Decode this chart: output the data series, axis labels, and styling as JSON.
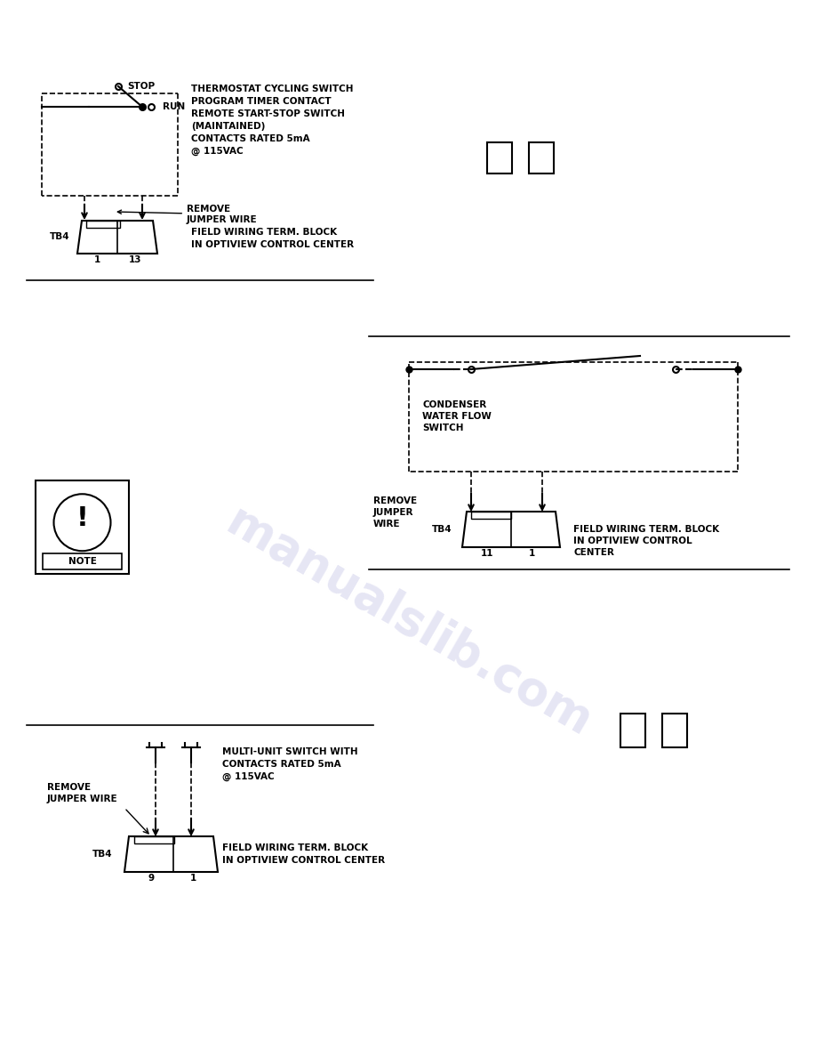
{
  "bg_color": "#ffffff",
  "watermark_text": "manualslib.com",
  "watermark_color": "#c8c8e8",
  "watermark_alpha": 0.5,
  "section1": {
    "switch_label_stop": "O STOP",
    "switch_label_run": "O RUN",
    "desc_lines": [
      "THERMOSTAT CYCLING SWITCH",
      "PROGRAM TIMER CONTACT",
      "REMOTE START-STOP SWITCH",
      "(MAINTAINED)",
      "CONTACTS RATED 5mA",
      "@ 115VAC"
    ],
    "remove_label": "REMOVE\nJUMPER WIRE",
    "tb_label": "TB4",
    "term_labels": [
      "1",
      "13"
    ],
    "field_label": "FIELD WIRING TERM. BLOCK\nIN OPTIVIEW CONTROL CENTER"
  },
  "section2": {
    "switch_label": "CONDENSER\nWATER FLOW\nSWITCH",
    "remove_label": "REMOVE\nJUMPER\nWIRE",
    "tb_label": "TB4",
    "term_labels": [
      "11",
      "1"
    ],
    "field_label": "FIELD WIRING TERM. BLOCK\nIN OPTIVIEW CONTROL\nCENTER"
  },
  "section3": {
    "switch_label": "MULTI-UNIT SWITCH WITH\nCONTACTS RATED 5mA\n@ 115VAC",
    "remove_label": "REMOVE\nJUMPER WIRE",
    "tb_label": "TB4",
    "term_labels": [
      "9",
      "1"
    ],
    "field_label": "FIELD WIRING TERM. BLOCK\nIN OPTIVIEW CONTROL CENTER"
  },
  "divider_color": "#000000",
  "line_color": "#000000",
  "font_size": 7.5,
  "font_size_small": 6.5,
  "font_name": "DejaVu Sans"
}
